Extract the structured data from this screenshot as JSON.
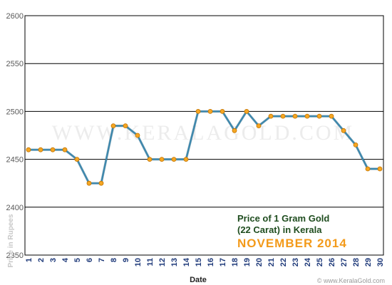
{
  "chart_data": {
    "type": "line",
    "title": "",
    "xlabel": "Date",
    "ylabel": "Price in Rupees",
    "x": [
      1,
      2,
      3,
      4,
      5,
      6,
      7,
      8,
      9,
      10,
      11,
      12,
      13,
      14,
      15,
      16,
      17,
      18,
      19,
      20,
      21,
      22,
      23,
      24,
      25,
      26,
      27,
      28,
      29,
      30
    ],
    "series": [
      {
        "values": [
          2460,
          2460,
          2460,
          2460,
          2450,
          2425,
          2425,
          2485,
          2485,
          2475,
          2450,
          2450,
          2450,
          2450,
          2500,
          2500,
          2500,
          2480,
          2500,
          2485,
          2495,
          2495,
          2495,
          2495,
          2495,
          2495,
          2480,
          2465,
          2440,
          2440
        ]
      }
    ],
    "ylim": [
      2350,
      2600
    ],
    "yticks": [
      2350,
      2400,
      2450,
      2500,
      2550,
      2600
    ],
    "grid": true,
    "annotation": {
      "line1": "Price of 1 Gram Gold",
      "line2": "(22 Carat) in Kerala",
      "line3": "NOVEMBER 2014"
    },
    "watermark": "WWW.KERALAGOLD.COM",
    "credit": "© www.KeralaGold.com",
    "colors": {
      "line": "#3a87ad",
      "marker": "#f5a623",
      "grid": "#000000"
    }
  }
}
